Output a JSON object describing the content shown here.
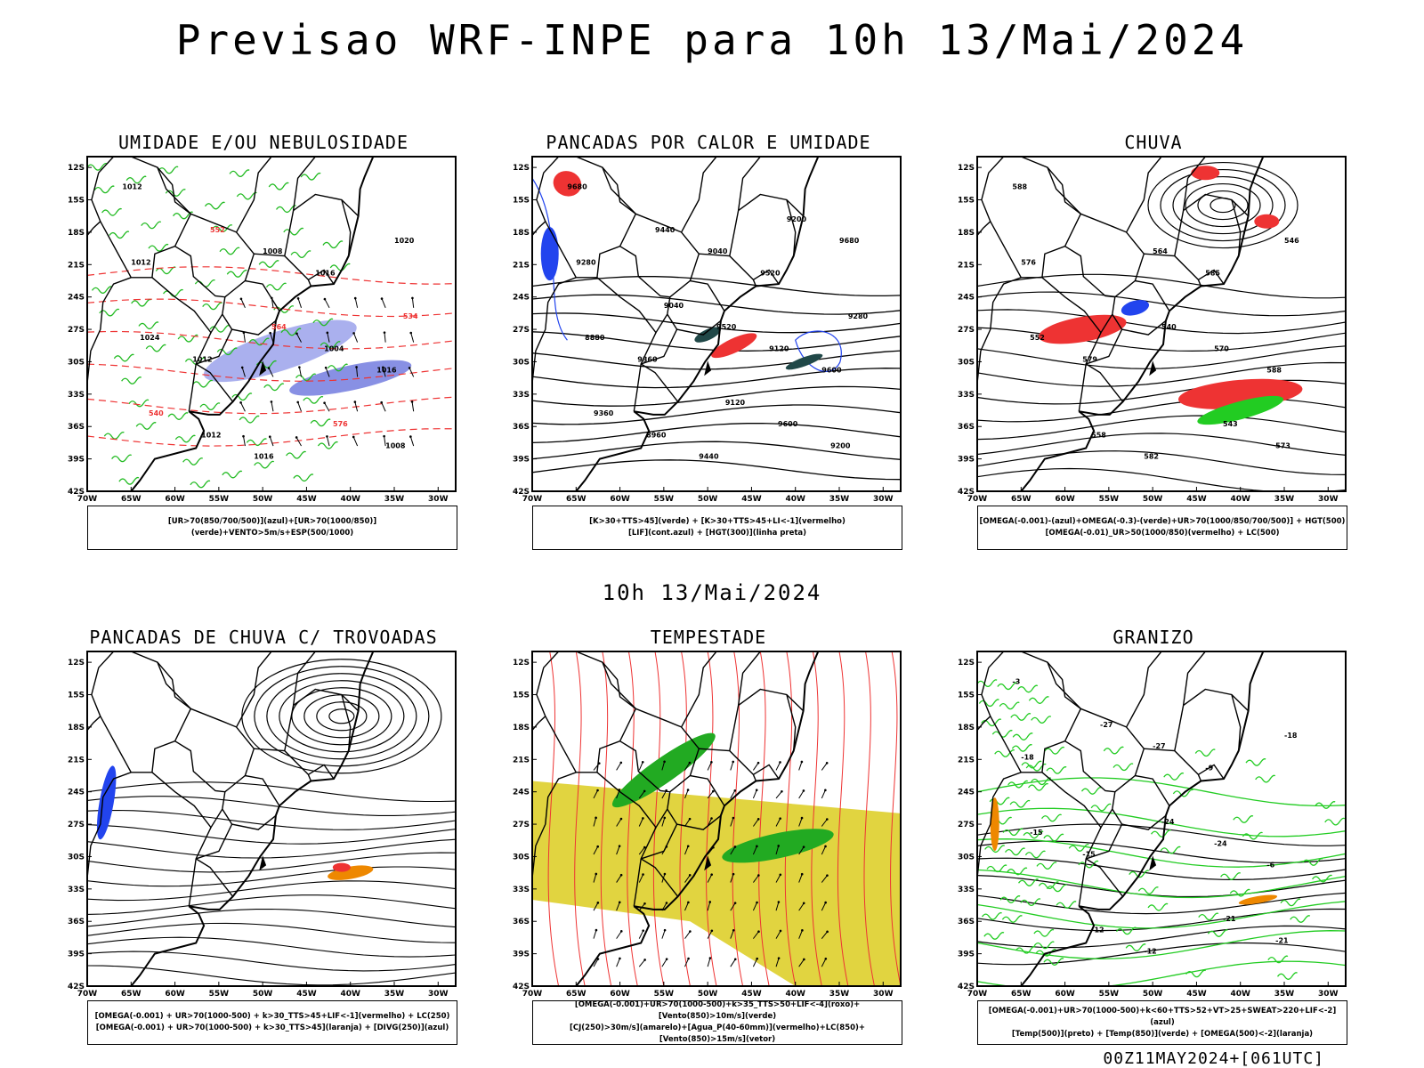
{
  "header": {
    "title": "Previsao WRF-INPE  para 10h 13/Mai/2024"
  },
  "middle": {
    "title": "10h 13/Mai/2024"
  },
  "footer": {
    "run_label": "00Z11MAY2024+[061UTC]"
  },
  "axes": {
    "lat_labels": [
      "12S",
      "15S",
      "18S",
      "21S",
      "24S",
      "27S",
      "30S",
      "33S",
      "36S",
      "39S",
      "42S"
    ],
    "lon_labels": [
      "70W",
      "65W",
      "60W",
      "55W",
      "50W",
      "45W",
      "40W",
      "35W",
      "30W"
    ]
  },
  "panels": [
    {
      "title": "UMIDADE E/OU NEBULOSIDADE",
      "legend": [
        "[UR>70(850/700/500)](azul)+[UR>70(1000/850)](verde)+VENTO>5m/s+ESP(500/1000)"
      ],
      "labels": [
        "1012",
        "1016",
        "1016",
        "1016",
        "1012",
        "1012",
        "1008",
        "1004",
        "1008",
        "1012",
        "1024",
        "1020",
        "576",
        "564",
        "552",
        "540",
        "534"
      ]
    },
    {
      "title": "PANCADAS POR CALOR E UMIDADE",
      "legend": [
        "[K>30+TTS>45](verde) + [K>30+TTS>45+LI<-1](vermelho)",
        "[LIF](cont.azul) + [HGT(300)](linha preta)"
      ],
      "labels": [
        "9680",
        "9600",
        "9520",
        "9440",
        "9360",
        "9280",
        "9200",
        "9120",
        "9040",
        "8960",
        "8880",
        "9680",
        "9600",
        "9520",
        "9440",
        "9360",
        "9280",
        "9200",
        "9120",
        "9040"
      ]
    },
    {
      "title": "CHUVA",
      "legend": [
        "[OMEGA(-0.001)-(azul)+OMEGA(-0.3)-(verde)+UR>70(1000/850/700/500)] + HGT(500)",
        "[OMEGA(-0.01)_UR>50(1000/850)(vermelho) + LC(500)"
      ],
      "labels": [
        "588",
        "588",
        "585",
        "582",
        "579",
        "576",
        "573",
        "570",
        "564",
        "558",
        "552",
        "546",
        "543",
        "540"
      ]
    },
    {
      "title": "PANCADAS DE CHUVA C/ TROVOADAS",
      "legend": [
        "[OMEGA(-0.001) + UR>70(1000-500) + k>30_TTS>45+LIF<-1](vermelho) + LC(250)",
        "[OMEGA(-0.001) + UR>70(1000-500) + k>30_TTS>45](laranja) + [DIVG(250)](azul)"
      ],
      "labels": []
    },
    {
      "title": "TEMPESTADE",
      "legend": [
        "[OMEGA(-0.001)+UR>70(1000-500)+k>35_TTS>50+LIF<-4](roxo)+[Vento(850)>10m/s](verde)",
        "[CJ(250)>30m/s](amarelo)+[Agua_P(40-60mm)](vermelho)+LC(850)+[Vento(850)>15m/s](vetor)"
      ],
      "labels": []
    },
    {
      "title": "GRANIZO",
      "legend": [
        "[OMEGA(-0.001)+UR>70(1000-500)+k<60+TTS>52+VT>25+SWEAT>220+LIF<-2](azul)",
        "[Temp(500)](preto) + [Temp(850)](verde) + [OMEGA(500)<-2](laranja)"
      ],
      "labels": [
        "-3",
        "-6",
        "-9",
        "-12",
        "-15",
        "-18",
        "-21",
        "-24",
        "-27",
        "-12",
        "-15",
        "-18",
        "-21",
        "-24",
        "-27"
      ]
    }
  ]
}
